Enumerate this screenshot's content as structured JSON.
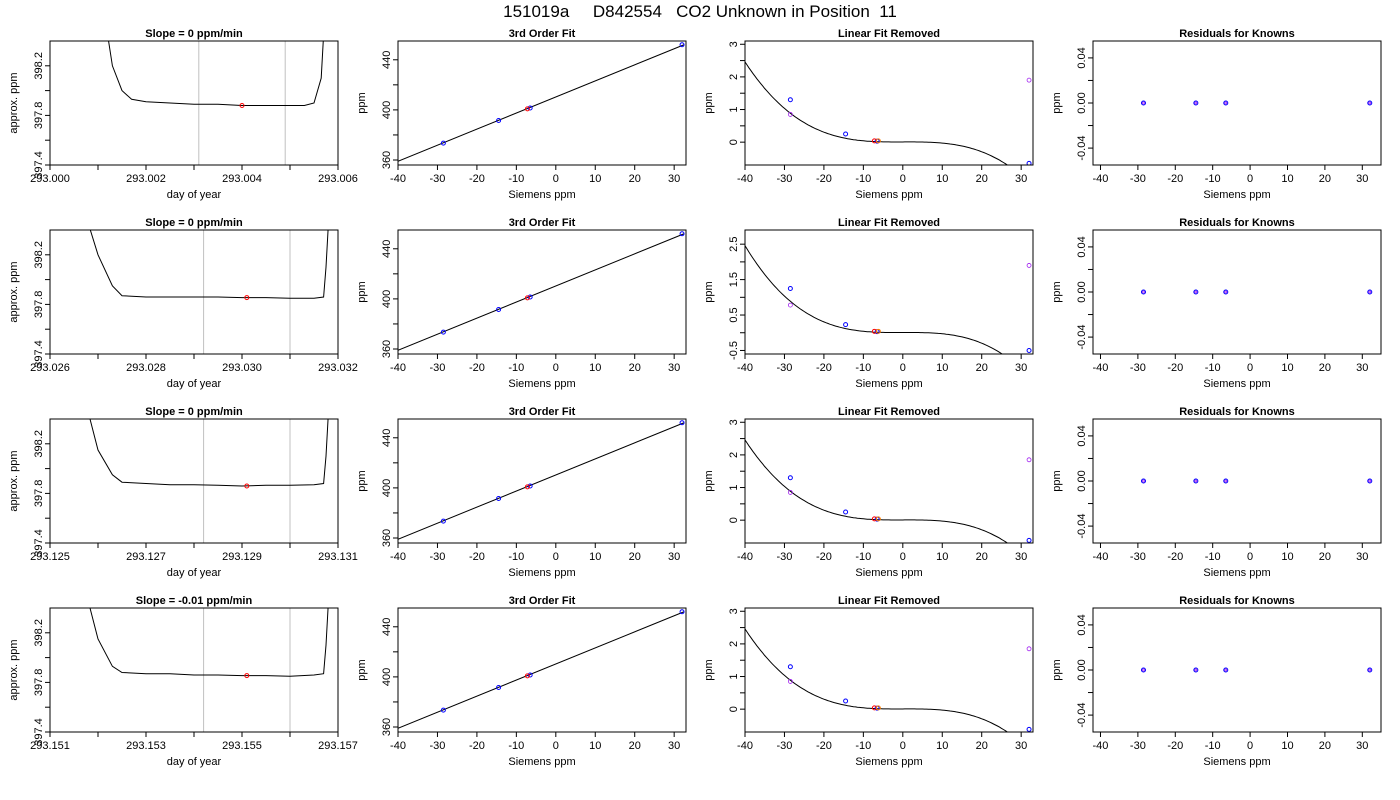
{
  "title": "151019a     D842554   CO2 Unknown in Position  11",
  "colors": {
    "trace": "#000000",
    "known_point": "#0000ff",
    "unknown_point": "#ff0000",
    "marker_line": "#c0c0c0",
    "residual_point": "#a020f0",
    "unknown_alt": "#ff8000"
  },
  "chart_data": [
    {
      "type": "line",
      "row": 1,
      "col": 1,
      "title": "Slope =  0  ppm/min",
      "xlabel": "day of year",
      "ylabel": "approx. ppm",
      "xlim": [
        293.0,
        293.006
      ],
      "ylim": [
        397.4,
        398.4
      ],
      "xticks": [
        "293.000",
        "293.002",
        "293.004",
        "293.006"
      ],
      "xtick_values": [
        293.0,
        293.002,
        293.004,
        293.006
      ],
      "yticks": [
        "397.4",
        "397.8",
        "398.2"
      ],
      "ytick_values": [
        397.4,
        397.8,
        398.2
      ],
      "vlines": [
        293.0031,
        293.0049
      ],
      "series": [
        {
          "x": [
            293.0012,
            293.0013,
            293.0015,
            293.0017,
            293.002,
            293.0025,
            293.003,
            293.0035,
            293.004,
            293.0045,
            293.005,
            293.0053,
            293.0055,
            293.00565,
            293.0057
          ],
          "y": [
            398.45,
            398.2,
            398.0,
            397.93,
            397.91,
            397.9,
            397.89,
            397.89,
            397.88,
            397.88,
            397.88,
            397.88,
            397.9,
            398.1,
            398.45
          ]
        }
      ],
      "highlight_point": {
        "x": 293.004,
        "y": 397.88
      }
    },
    {
      "type": "scatter",
      "row": 1,
      "col": 2,
      "title": "3rd Order Fit",
      "xlabel": "Siemens ppm",
      "ylabel": "ppm",
      "xlim": [
        -40,
        33
      ],
      "ylim": [
        356,
        455
      ],
      "xticks": [
        "-40",
        "-30",
        "-20",
        "-10",
        "0",
        "10",
        "20",
        "30"
      ],
      "xtick_values": [
        -40,
        -30,
        -20,
        -10,
        0,
        10,
        20,
        30
      ],
      "yticks": [
        "360",
        "400",
        "440"
      ],
      "ytick_values": [
        360,
        400,
        440
      ],
      "fit_line": {
        "x": [
          -40,
          32.5
        ],
        "y": [
          359,
          452
        ]
      },
      "known_points": {
        "x": [
          -28.5,
          -14.5,
          -6.5,
          32.0
        ],
        "y": [
          373.5,
          391.5,
          401.5,
          452.0
        ]
      },
      "unknown_points": {
        "x": [
          -7.2
        ],
        "y": [
          400.8
        ]
      }
    },
    {
      "type": "scatter",
      "row": 1,
      "col": 3,
      "title": "Linear Fit Removed",
      "xlabel": "Siemens ppm",
      "ylabel": "ppm",
      "xlim": [
        -40,
        33
      ],
      "ylim": [
        -0.7,
        3.1
      ],
      "xticks": [
        "-40",
        "-30",
        "-20",
        "-10",
        "0",
        "10",
        "20",
        "30"
      ],
      "xtick_values": [
        -40,
        -30,
        -20,
        -10,
        0,
        10,
        20,
        30
      ],
      "yticks": [
        "0",
        "1",
        "2",
        "3"
      ],
      "ytick_values": [
        0,
        1,
        2,
        3
      ],
      "curve_model": [
        -3.86e-05,
        -3.85e-07,
        0.000435,
        0.00625
      ],
      "known_points": {
        "x": [
          -28.5,
          -14.5,
          -6.5,
          32.0
        ],
        "y": [
          1.3,
          0.25,
          0.03,
          -0.65
        ]
      },
      "open_points": {
        "x": [
          -28.5,
          32.0
        ],
        "y": [
          0.85,
          1.9
        ]
      },
      "unknown_points": {
        "x": [
          -7.2
        ],
        "y": [
          0.04
        ]
      }
    },
    {
      "type": "scatter",
      "row": 1,
      "col": 4,
      "title": "Residuals for Knowns",
      "xlabel": "Siemens ppm",
      "ylabel": "ppm",
      "xlim": [
        -42,
        35
      ],
      "ylim": [
        -0.055,
        0.055
      ],
      "xticks": [
        "-40",
        "-30",
        "-20",
        "-10",
        "0",
        "10",
        "20",
        "30"
      ],
      "xtick_values": [
        -40,
        -30,
        -20,
        -10,
        0,
        10,
        20,
        30
      ],
      "yticks": [
        "-0.04",
        "0.00",
        "0.04"
      ],
      "ytick_values": [
        -0.04,
        0.0,
        0.04
      ],
      "residual_points": {
        "x": [
          -28.5,
          -14.5,
          -6.5,
          32.0
        ],
        "y": [
          0,
          0,
          0,
          0
        ]
      }
    },
    {
      "type": "line",
      "row": 2,
      "col": 1,
      "title": "Slope =  0  ppm/min",
      "xlabel": "day of year",
      "ylabel": "approx. ppm",
      "xlim": [
        293.026,
        293.032
      ],
      "ylim": [
        397.4,
        398.4
      ],
      "xticks": [
        "293.026",
        "293.028",
        "293.030",
        "293.032"
      ],
      "xtick_values": [
        293.026,
        293.028,
        293.03,
        293.032
      ],
      "yticks": [
        "397.4",
        "397.8",
        "398.2"
      ],
      "ytick_values": [
        397.4,
        397.8,
        398.2
      ],
      "vlines": [
        293.0292,
        293.031
      ],
      "series": [
        {
          "x": [
            293.0268,
            293.027,
            293.0273,
            293.0275,
            293.028,
            293.0285,
            293.029,
            293.0295,
            293.03,
            293.0305,
            293.031,
            293.0315,
            293.0317,
            293.03175,
            293.0318
          ],
          "y": [
            398.45,
            398.2,
            397.95,
            397.87,
            397.86,
            397.86,
            397.86,
            397.86,
            397.855,
            397.855,
            397.85,
            397.85,
            397.86,
            398.1,
            398.45
          ]
        }
      ],
      "highlight_point": {
        "x": 293.0301,
        "y": 397.855
      }
    },
    {
      "type": "scatter",
      "row": 2,
      "col": 2,
      "title": "3rd Order Fit",
      "xlabel": "Siemens ppm",
      "ylabel": "ppm",
      "xlim": [
        -40,
        33
      ],
      "ylim": [
        356,
        455
      ],
      "xticks": [
        "-40",
        "-30",
        "-20",
        "-10",
        "0",
        "10",
        "20",
        "30"
      ],
      "xtick_values": [
        -40,
        -30,
        -20,
        -10,
        0,
        10,
        20,
        30
      ],
      "yticks": [
        "360",
        "400",
        "440"
      ],
      "ytick_values": [
        360,
        400,
        440
      ],
      "fit_line": {
        "x": [
          -40,
          32.5
        ],
        "y": [
          359,
          452
        ]
      },
      "known_points": {
        "x": [
          -28.5,
          -14.5,
          -6.5,
          32.0
        ],
        "y": [
          373.5,
          391.5,
          401.5,
          452.0
        ]
      },
      "unknown_points": {
        "x": [
          -7.2
        ],
        "y": [
          400.8
        ]
      }
    },
    {
      "type": "scatter",
      "row": 2,
      "col": 3,
      "title": "Linear Fit Removed",
      "xlabel": "Siemens ppm",
      "ylabel": "ppm",
      "xlim": [
        -40,
        33
      ],
      "ylim": [
        -0.6,
        2.9
      ],
      "xticks": [
        "-40",
        "-30",
        "-20",
        "-10",
        "0",
        "10",
        "20",
        "30"
      ],
      "xtick_values": [
        -40,
        -30,
        -20,
        -10,
        0,
        10,
        20,
        30
      ],
      "yticks": [
        "-0.5",
        "0.5",
        "1.5",
        "2.5"
      ],
      "ytick_values": [
        -0.5,
        0.5,
        1.5,
        2.5
      ],
      "curve_model": [
        -3.86e-05,
        -3.85e-07,
        0.000435,
        0.00625
      ],
      "known_points": {
        "x": [
          -28.5,
          -14.5,
          -6.5,
          32.0
        ],
        "y": [
          1.25,
          0.23,
          0.03,
          -0.5
        ]
      },
      "open_points": {
        "x": [
          -28.5,
          32.0
        ],
        "y": [
          0.78,
          1.9
        ]
      },
      "unknown_points": {
        "x": [
          -7.2
        ],
        "y": [
          0.04
        ]
      }
    },
    {
      "type": "scatter",
      "row": 2,
      "col": 4,
      "title": "Residuals for Knowns",
      "xlabel": "Siemens ppm",
      "ylabel": "ppm",
      "xlim": [
        -42,
        35
      ],
      "ylim": [
        -0.055,
        0.055
      ],
      "xticks": [
        "-40",
        "-30",
        "-20",
        "-10",
        "0",
        "10",
        "20",
        "30"
      ],
      "xtick_values": [
        -40,
        -30,
        -20,
        -10,
        0,
        10,
        20,
        30
      ],
      "yticks": [
        "-0.04",
        "0.00",
        "0.04"
      ],
      "ytick_values": [
        -0.04,
        0.0,
        0.04
      ],
      "residual_points": {
        "x": [
          -28.5,
          -14.5,
          -6.5,
          32.0
        ],
        "y": [
          0,
          0,
          0,
          0
        ]
      }
    },
    {
      "type": "line",
      "row": 3,
      "col": 1,
      "title": "Slope =  0  ppm/min",
      "xlabel": "day of year",
      "ylabel": "approx. ppm",
      "xlim": [
        293.125,
        293.131
      ],
      "ylim": [
        397.4,
        398.4
      ],
      "xticks": [
        "293.125",
        "293.127",
        "293.129",
        "293.131"
      ],
      "xtick_values": [
        293.125,
        293.127,
        293.129,
        293.131
      ],
      "yticks": [
        "397.4",
        "397.8",
        "398.2"
      ],
      "ytick_values": [
        397.4,
        397.8,
        398.2
      ],
      "vlines": [
        293.1282,
        293.13
      ],
      "series": [
        {
          "x": [
            293.1258,
            293.126,
            293.1263,
            293.1265,
            293.127,
            293.1275,
            293.128,
            293.1285,
            293.129,
            293.1295,
            293.13,
            293.1305,
            293.1307,
            293.13075,
            293.1308
          ],
          "y": [
            398.45,
            398.15,
            397.95,
            397.89,
            397.88,
            397.87,
            397.87,
            397.865,
            397.86,
            397.865,
            397.865,
            397.87,
            397.88,
            398.1,
            398.45
          ]
        }
      ],
      "highlight_point": {
        "x": 293.1291,
        "y": 397.86
      }
    },
    {
      "type": "scatter",
      "row": 3,
      "col": 2,
      "title": "3rd Order Fit",
      "xlabel": "Siemens ppm",
      "ylabel": "ppm",
      "xlim": [
        -40,
        33
      ],
      "ylim": [
        356,
        455
      ],
      "xticks": [
        "-40",
        "-30",
        "-20",
        "-10",
        "0",
        "10",
        "20",
        "30"
      ],
      "xtick_values": [
        -40,
        -30,
        -20,
        -10,
        0,
        10,
        20,
        30
      ],
      "yticks": [
        "360",
        "400",
        "440"
      ],
      "ytick_values": [
        360,
        400,
        440
      ],
      "fit_line": {
        "x": [
          -40,
          32.5
        ],
        "y": [
          359,
          452
        ]
      },
      "known_points": {
        "x": [
          -28.5,
          -14.5,
          -6.5,
          32.0
        ],
        "y": [
          373.5,
          391.5,
          401.5,
          452.0
        ]
      },
      "unknown_points": {
        "x": [
          -7.2
        ],
        "y": [
          400.8
        ]
      }
    },
    {
      "type": "scatter",
      "row": 3,
      "col": 3,
      "title": "Linear Fit Removed",
      "xlabel": "Siemens ppm",
      "ylabel": "ppm",
      "xlim": [
        -40,
        33
      ],
      "ylim": [
        -0.7,
        3.1
      ],
      "xticks": [
        "-40",
        "-30",
        "-20",
        "-10",
        "0",
        "10",
        "20",
        "30"
      ],
      "xtick_values": [
        -40,
        -30,
        -20,
        -10,
        0,
        10,
        20,
        30
      ],
      "yticks": [
        "0",
        "1",
        "2",
        "3"
      ],
      "ytick_values": [
        0,
        1,
        2,
        3
      ],
      "curve_model": [
        -3.86e-05,
        -3.85e-07,
        0.000435,
        0.00625
      ],
      "known_points": {
        "x": [
          -28.5,
          -14.5,
          -6.5,
          32.0
        ],
        "y": [
          1.3,
          0.25,
          0.03,
          -0.62
        ]
      },
      "open_points": {
        "x": [
          -28.5,
          32.0
        ],
        "y": [
          0.85,
          1.85
        ]
      },
      "unknown_points": {
        "x": [
          -7.2
        ],
        "y": [
          0.04
        ]
      }
    },
    {
      "type": "scatter",
      "row": 3,
      "col": 4,
      "title": "Residuals for Knowns",
      "xlabel": "Siemens ppm",
      "ylabel": "ppm",
      "xlim": [
        -42,
        35
      ],
      "ylim": [
        -0.055,
        0.055
      ],
      "xticks": [
        "-40",
        "-30",
        "-20",
        "-10",
        "0",
        "10",
        "20",
        "30"
      ],
      "xtick_values": [
        -40,
        -30,
        -20,
        -10,
        0,
        10,
        20,
        30
      ],
      "yticks": [
        "-0.04",
        "0.00",
        "0.04"
      ],
      "ytick_values": [
        -0.04,
        0.0,
        0.04
      ],
      "residual_points": {
        "x": [
          -28.5,
          -14.5,
          -6.5,
          32.0
        ],
        "y": [
          0,
          0,
          0,
          0
        ]
      }
    },
    {
      "type": "line",
      "row": 4,
      "col": 1,
      "title": "Slope =  -0.01  ppm/min",
      "xlabel": "day of year",
      "ylabel": "approx. ppm",
      "xlim": [
        293.151,
        293.157
      ],
      "ylim": [
        397.4,
        398.4
      ],
      "xticks": [
        "293.151",
        "293.153",
        "293.155",
        "293.157"
      ],
      "xtick_values": [
        293.151,
        293.153,
        293.155,
        293.157
      ],
      "yticks": [
        "397.4",
        "397.8",
        "398.2"
      ],
      "ytick_values": [
        397.4,
        397.8,
        398.2
      ],
      "vlines": [
        293.1542,
        293.156
      ],
      "series": [
        {
          "x": [
            293.1518,
            293.152,
            293.1523,
            293.1525,
            293.153,
            293.1535,
            293.154,
            293.1545,
            293.155,
            293.1555,
            293.156,
            293.1565,
            293.1567,
            293.15675,
            293.1568
          ],
          "y": [
            398.45,
            398.15,
            397.93,
            397.88,
            397.87,
            397.87,
            397.86,
            397.86,
            397.855,
            397.855,
            397.85,
            397.86,
            397.87,
            398.1,
            398.45
          ]
        }
      ],
      "highlight_point": {
        "x": 293.1551,
        "y": 397.855
      }
    },
    {
      "type": "scatter",
      "row": 4,
      "col": 2,
      "title": "3rd Order Fit",
      "xlabel": "Siemens ppm",
      "ylabel": "ppm",
      "xlim": [
        -40,
        33
      ],
      "ylim": [
        356,
        455
      ],
      "xticks": [
        "-40",
        "-30",
        "-20",
        "-10",
        "0",
        "10",
        "20",
        "30"
      ],
      "xtick_values": [
        -40,
        -30,
        -20,
        -10,
        0,
        10,
        20,
        30
      ],
      "yticks": [
        "360",
        "400",
        "440"
      ],
      "ytick_values": [
        360,
        400,
        440
      ],
      "fit_line": {
        "x": [
          -40,
          32.5
        ],
        "y": [
          359,
          452
        ]
      },
      "known_points": {
        "x": [
          -28.5,
          -14.5,
          -6.5,
          32.0
        ],
        "y": [
          373.5,
          391.5,
          401.5,
          452.0
        ]
      },
      "unknown_points": {
        "x": [
          -7.2
        ],
        "y": [
          400.8
        ]
      }
    },
    {
      "type": "scatter",
      "row": 4,
      "col": 3,
      "title": "Linear Fit Removed",
      "xlabel": "Siemens ppm",
      "ylabel": "ppm",
      "xlim": [
        -40,
        33
      ],
      "ylim": [
        -0.7,
        3.1
      ],
      "xticks": [
        "-40",
        "-30",
        "-20",
        "-10",
        "0",
        "10",
        "20",
        "30"
      ],
      "xtick_values": [
        -40,
        -30,
        -20,
        -10,
        0,
        10,
        20,
        30
      ],
      "yticks": [
        "0",
        "1",
        "2",
        "3"
      ],
      "ytick_values": [
        0,
        1,
        2,
        3
      ],
      "curve_model": [
        -3.86e-05,
        -3.85e-07,
        0.000435,
        0.00625
      ],
      "known_points": {
        "x": [
          -28.5,
          -14.5,
          -6.5,
          32.0
        ],
        "y": [
          1.3,
          0.25,
          0.03,
          -0.62
        ]
      },
      "open_points": {
        "x": [
          -28.5,
          32.0
        ],
        "y": [
          0.85,
          1.85
        ]
      },
      "unknown_points": {
        "x": [
          -7.2
        ],
        "y": [
          0.04
        ]
      }
    },
    {
      "type": "scatter",
      "row": 4,
      "col": 4,
      "title": "Residuals for Knowns",
      "xlabel": "Siemens ppm",
      "ylabel": "ppm",
      "xlim": [
        -42,
        35
      ],
      "ylim": [
        -0.055,
        0.055
      ],
      "xticks": [
        "-40",
        "-30",
        "-20",
        "-10",
        "0",
        "10",
        "20",
        "30"
      ],
      "xtick_values": [
        -40,
        -30,
        -20,
        -10,
        0,
        10,
        20,
        30
      ],
      "yticks": [
        "-0.04",
        "0.00",
        "0.04"
      ],
      "ytick_values": [
        -0.04,
        0.0,
        0.04
      ],
      "residual_points": {
        "x": [
          -28.5,
          -14.5,
          -6.5,
          32.0
        ],
        "y": [
          0,
          0,
          0,
          0
        ]
      }
    }
  ]
}
